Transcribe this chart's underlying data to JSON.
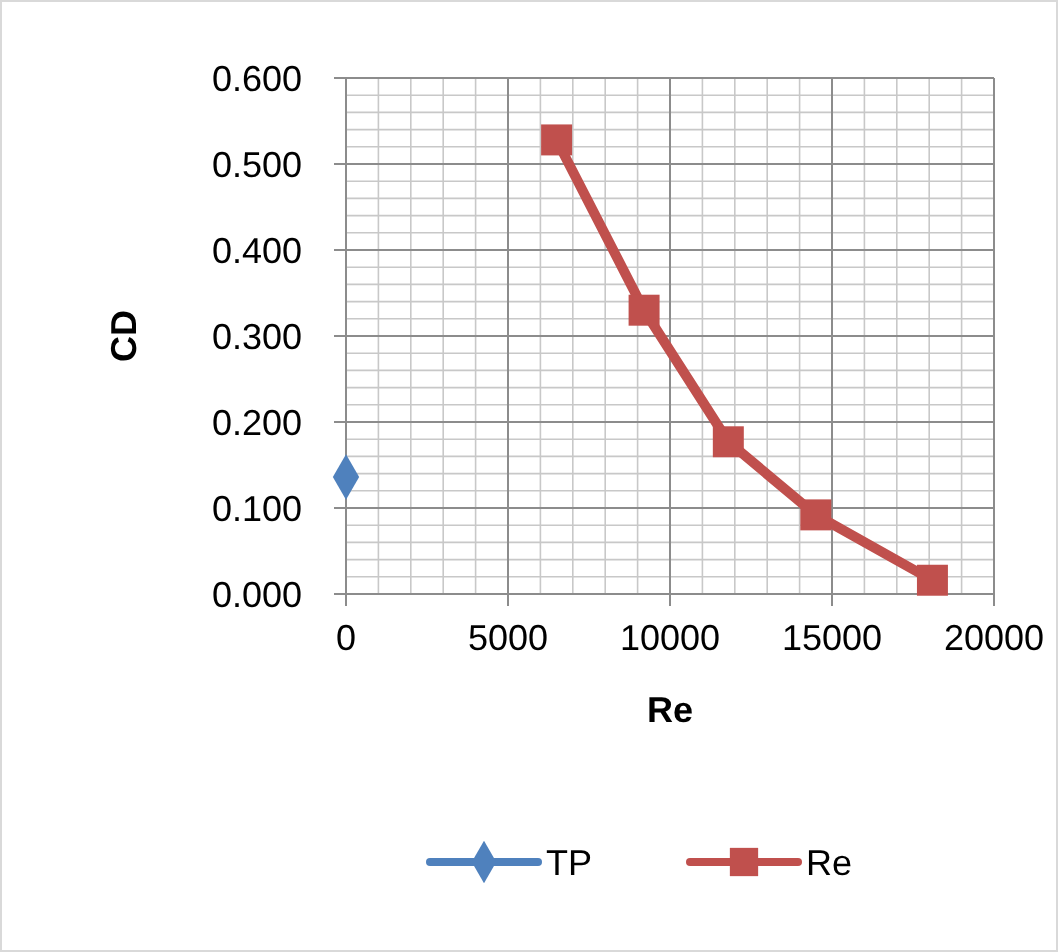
{
  "chart_data": {
    "type": "line",
    "xlabel": "Re",
    "ylabel": "CD",
    "xlim": [
      0,
      20000
    ],
    "xticks": [
      0,
      5000,
      10000,
      15000,
      20000
    ],
    "ylim": [
      0,
      0.6
    ],
    "yticks": [
      {
        "value": 0,
        "label": "0.000"
      },
      {
        "value": 0.1,
        "label": "0.100"
      },
      {
        "value": 0.2,
        "label": "0.200"
      },
      {
        "value": 0.3,
        "label": "0.300"
      },
      {
        "value": 0.4,
        "label": "0.400"
      },
      {
        "value": 0.5,
        "label": "0.500"
      },
      {
        "value": 0.6,
        "label": "0.600"
      }
    ],
    "grid": true,
    "legend": "bottom",
    "line_style": "solid",
    "series": [
      {
        "name": "TP",
        "color": "#4f81bd",
        "marker": "diamond",
        "x": [
          0
        ],
        "values": [
          0.136
        ]
      },
      {
        "name": "Re",
        "color": "#c0504d",
        "marker": "square",
        "x": [
          6500,
          9200,
          11800,
          14500,
          18100
        ],
        "values": [
          0.528,
          0.33,
          0.177,
          0.092,
          0.016
        ]
      }
    ]
  }
}
